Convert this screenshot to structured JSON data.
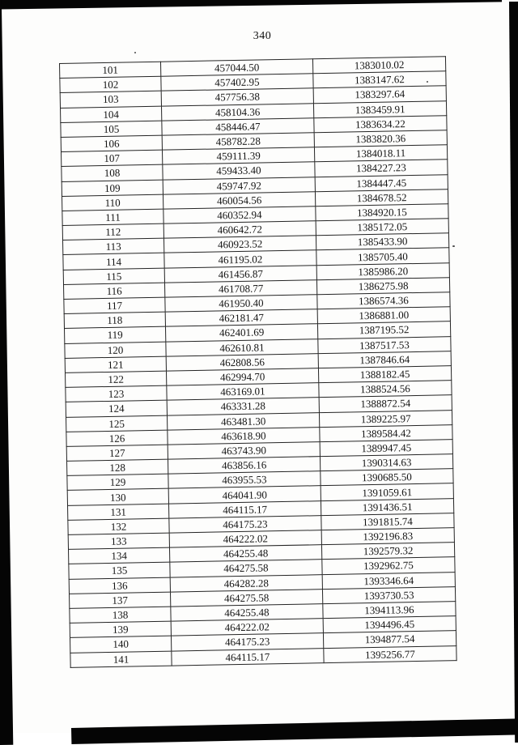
{
  "page": {
    "number": "340"
  },
  "table": {
    "rows": [
      [
        "101",
        "457044.50",
        "1383010.02"
      ],
      [
        "102",
        "457402.95",
        "1383147.62"
      ],
      [
        "103",
        "457756.38",
        "1383297.64"
      ],
      [
        "104",
        "458104.36",
        "1383459.91"
      ],
      [
        "105",
        "458446.47",
        "1383634.22"
      ],
      [
        "106",
        "458782.28",
        "1383820.36"
      ],
      [
        "107",
        "459111.39",
        "1384018.11"
      ],
      [
        "108",
        "459433.40",
        "1384227.23"
      ],
      [
        "109",
        "459747.92",
        "1384447.45"
      ],
      [
        "110",
        "460054.56",
        "1384678.52"
      ],
      [
        "111",
        "460352.94",
        "1384920.15"
      ],
      [
        "112",
        "460642.72",
        "1385172.05"
      ],
      [
        "113",
        "460923.52",
        "1385433.90"
      ],
      [
        "114",
        "461195.02",
        "1385705.40"
      ],
      [
        "115",
        "461456.87",
        "1385986.20"
      ],
      [
        "116",
        "461708.77",
        "1386275.98"
      ],
      [
        "117",
        "461950.40",
        "1386574.36"
      ],
      [
        "118",
        "462181.47",
        "1386881.00"
      ],
      [
        "119",
        "462401.69",
        "1387195.52"
      ],
      [
        "120",
        "462610.81",
        "1387517.53"
      ],
      [
        "121",
        "462808.56",
        "1387846.64"
      ],
      [
        "122",
        "462994.70",
        "1388182.45"
      ],
      [
        "123",
        "463169.01",
        "1388524.56"
      ],
      [
        "124",
        "463331.28",
        "1388872.54"
      ],
      [
        "125",
        "463481.30",
        "1389225.97"
      ],
      [
        "126",
        "463618.90",
        "1389584.42"
      ],
      [
        "127",
        "463743.90",
        "1389947.45"
      ],
      [
        "128",
        "463856.16",
        "1390314.63"
      ],
      [
        "129",
        "463955.53",
        "1390685.50"
      ],
      [
        "130",
        "464041.90",
        "1391059.61"
      ],
      [
        "131",
        "464115.17",
        "1391436.51"
      ],
      [
        "132",
        "464175.23",
        "1391815.74"
      ],
      [
        "133",
        "464222.02",
        "1392196.83"
      ],
      [
        "134",
        "464255.48",
        "1392579.32"
      ],
      [
        "135",
        "464275.58",
        "1392962.75"
      ],
      [
        "136",
        "464282.28",
        "1393346.64"
      ],
      [
        "137",
        "464275.58",
        "1393730.53"
      ],
      [
        "138",
        "464255.48",
        "1394113.96"
      ],
      [
        "139",
        "464222.02",
        "1394496.45"
      ],
      [
        "140",
        "464175.23",
        "1394877.54"
      ],
      [
        "141",
        "464115.17",
        "1395256.77"
      ]
    ]
  }
}
